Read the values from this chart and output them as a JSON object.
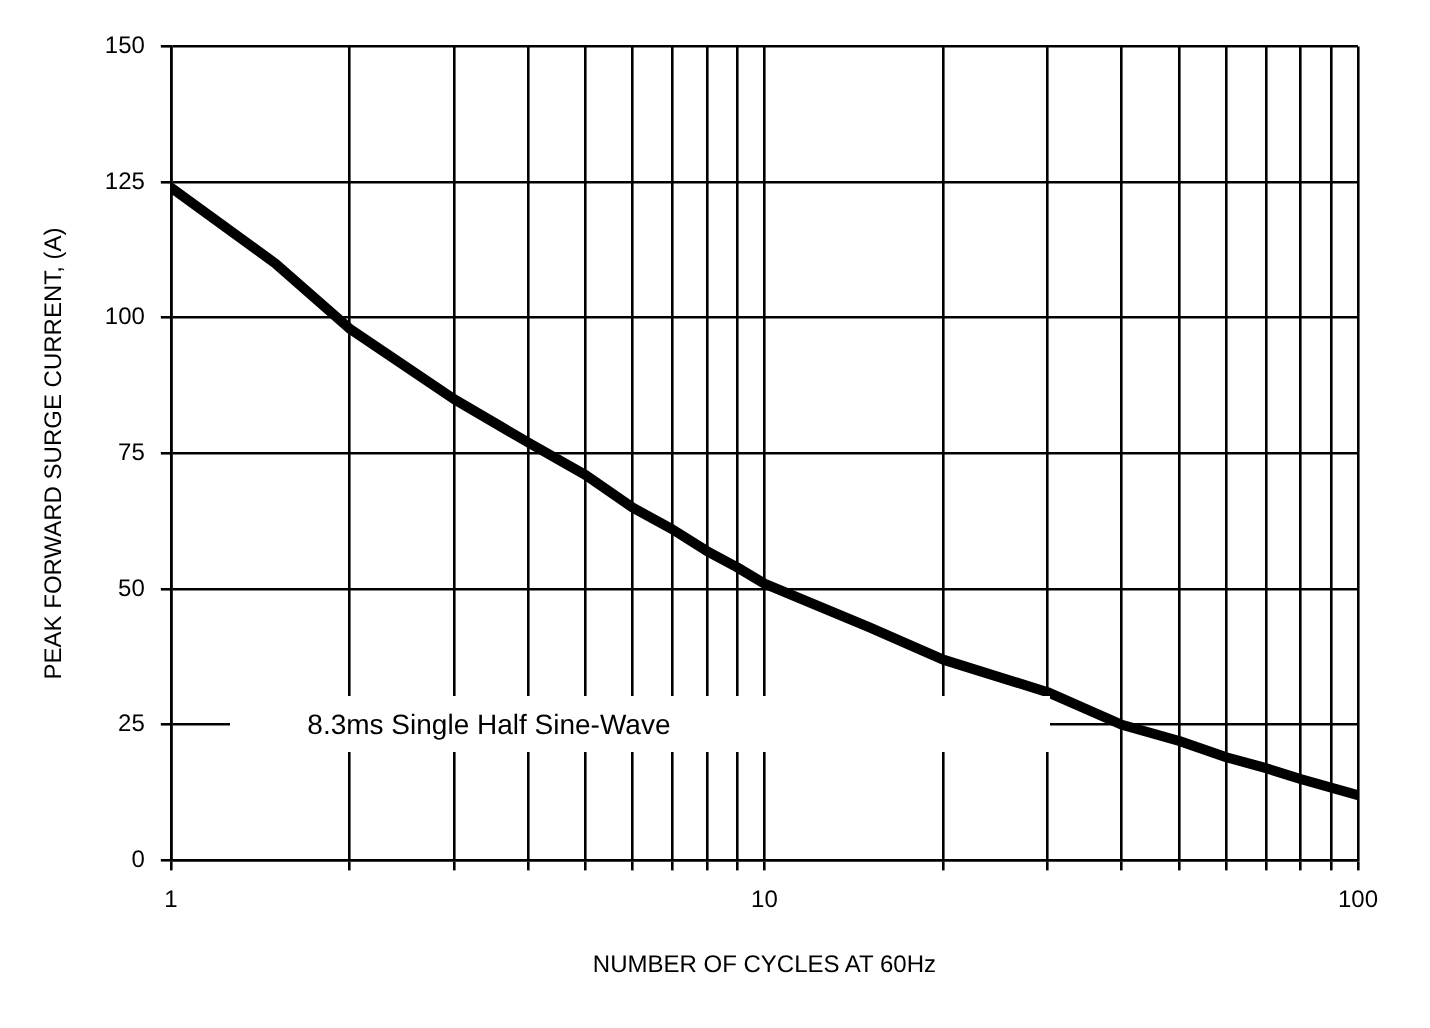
{
  "chart_data": {
    "type": "line",
    "xlabel": "NUMBER OF CYCLES AT 60Hz",
    "ylabel": "PEAK FORWARD SURGE CURRENT, (A)",
    "log": "x",
    "grid": true,
    "marker": "none",
    "line_style": "solid",
    "annotations": [
      "8.3ms Single Half Sine-Wave"
    ],
    "xlim": [
      1,
      100
    ],
    "ylim": [
      0,
      150
    ],
    "xticks": [
      1,
      {
        "value": 2,
        "label": null
      },
      {
        "value": 3,
        "label": null
      },
      {
        "value": 4,
        "label": null
      },
      {
        "value": 5,
        "label": null
      },
      {
        "value": 6,
        "label": null
      },
      {
        "value": 7,
        "label": null
      },
      {
        "value": 8,
        "label": null
      },
      {
        "value": 9,
        "label": null
      },
      10,
      {
        "value": 20,
        "label": null
      },
      {
        "value": 30,
        "label": null
      },
      {
        "value": 40,
        "label": null
      },
      {
        "value": 50,
        "label": null
      },
      {
        "value": 60,
        "label": null
      },
      {
        "value": 70,
        "label": null
      },
      {
        "value": 80,
        "label": null
      },
      {
        "value": 90,
        "label": null
      },
      100
    ],
    "yticks": [
      0,
      25,
      50,
      75,
      100,
      125,
      150
    ],
    "x": [
      1,
      1.5,
      2,
      3,
      4,
      5,
      6,
      7,
      8,
      9,
      10,
      15,
      20,
      30,
      40,
      50,
      60,
      70,
      80,
      100
    ],
    "series": [
      {
        "color": "#000000",
        "values": [
          124,
          110,
          98,
          85,
          77,
          71,
          65,
          61,
          57,
          54,
          51,
          43,
          37,
          31,
          25,
          22,
          19,
          17,
          15,
          12
        ]
      }
    ]
  }
}
